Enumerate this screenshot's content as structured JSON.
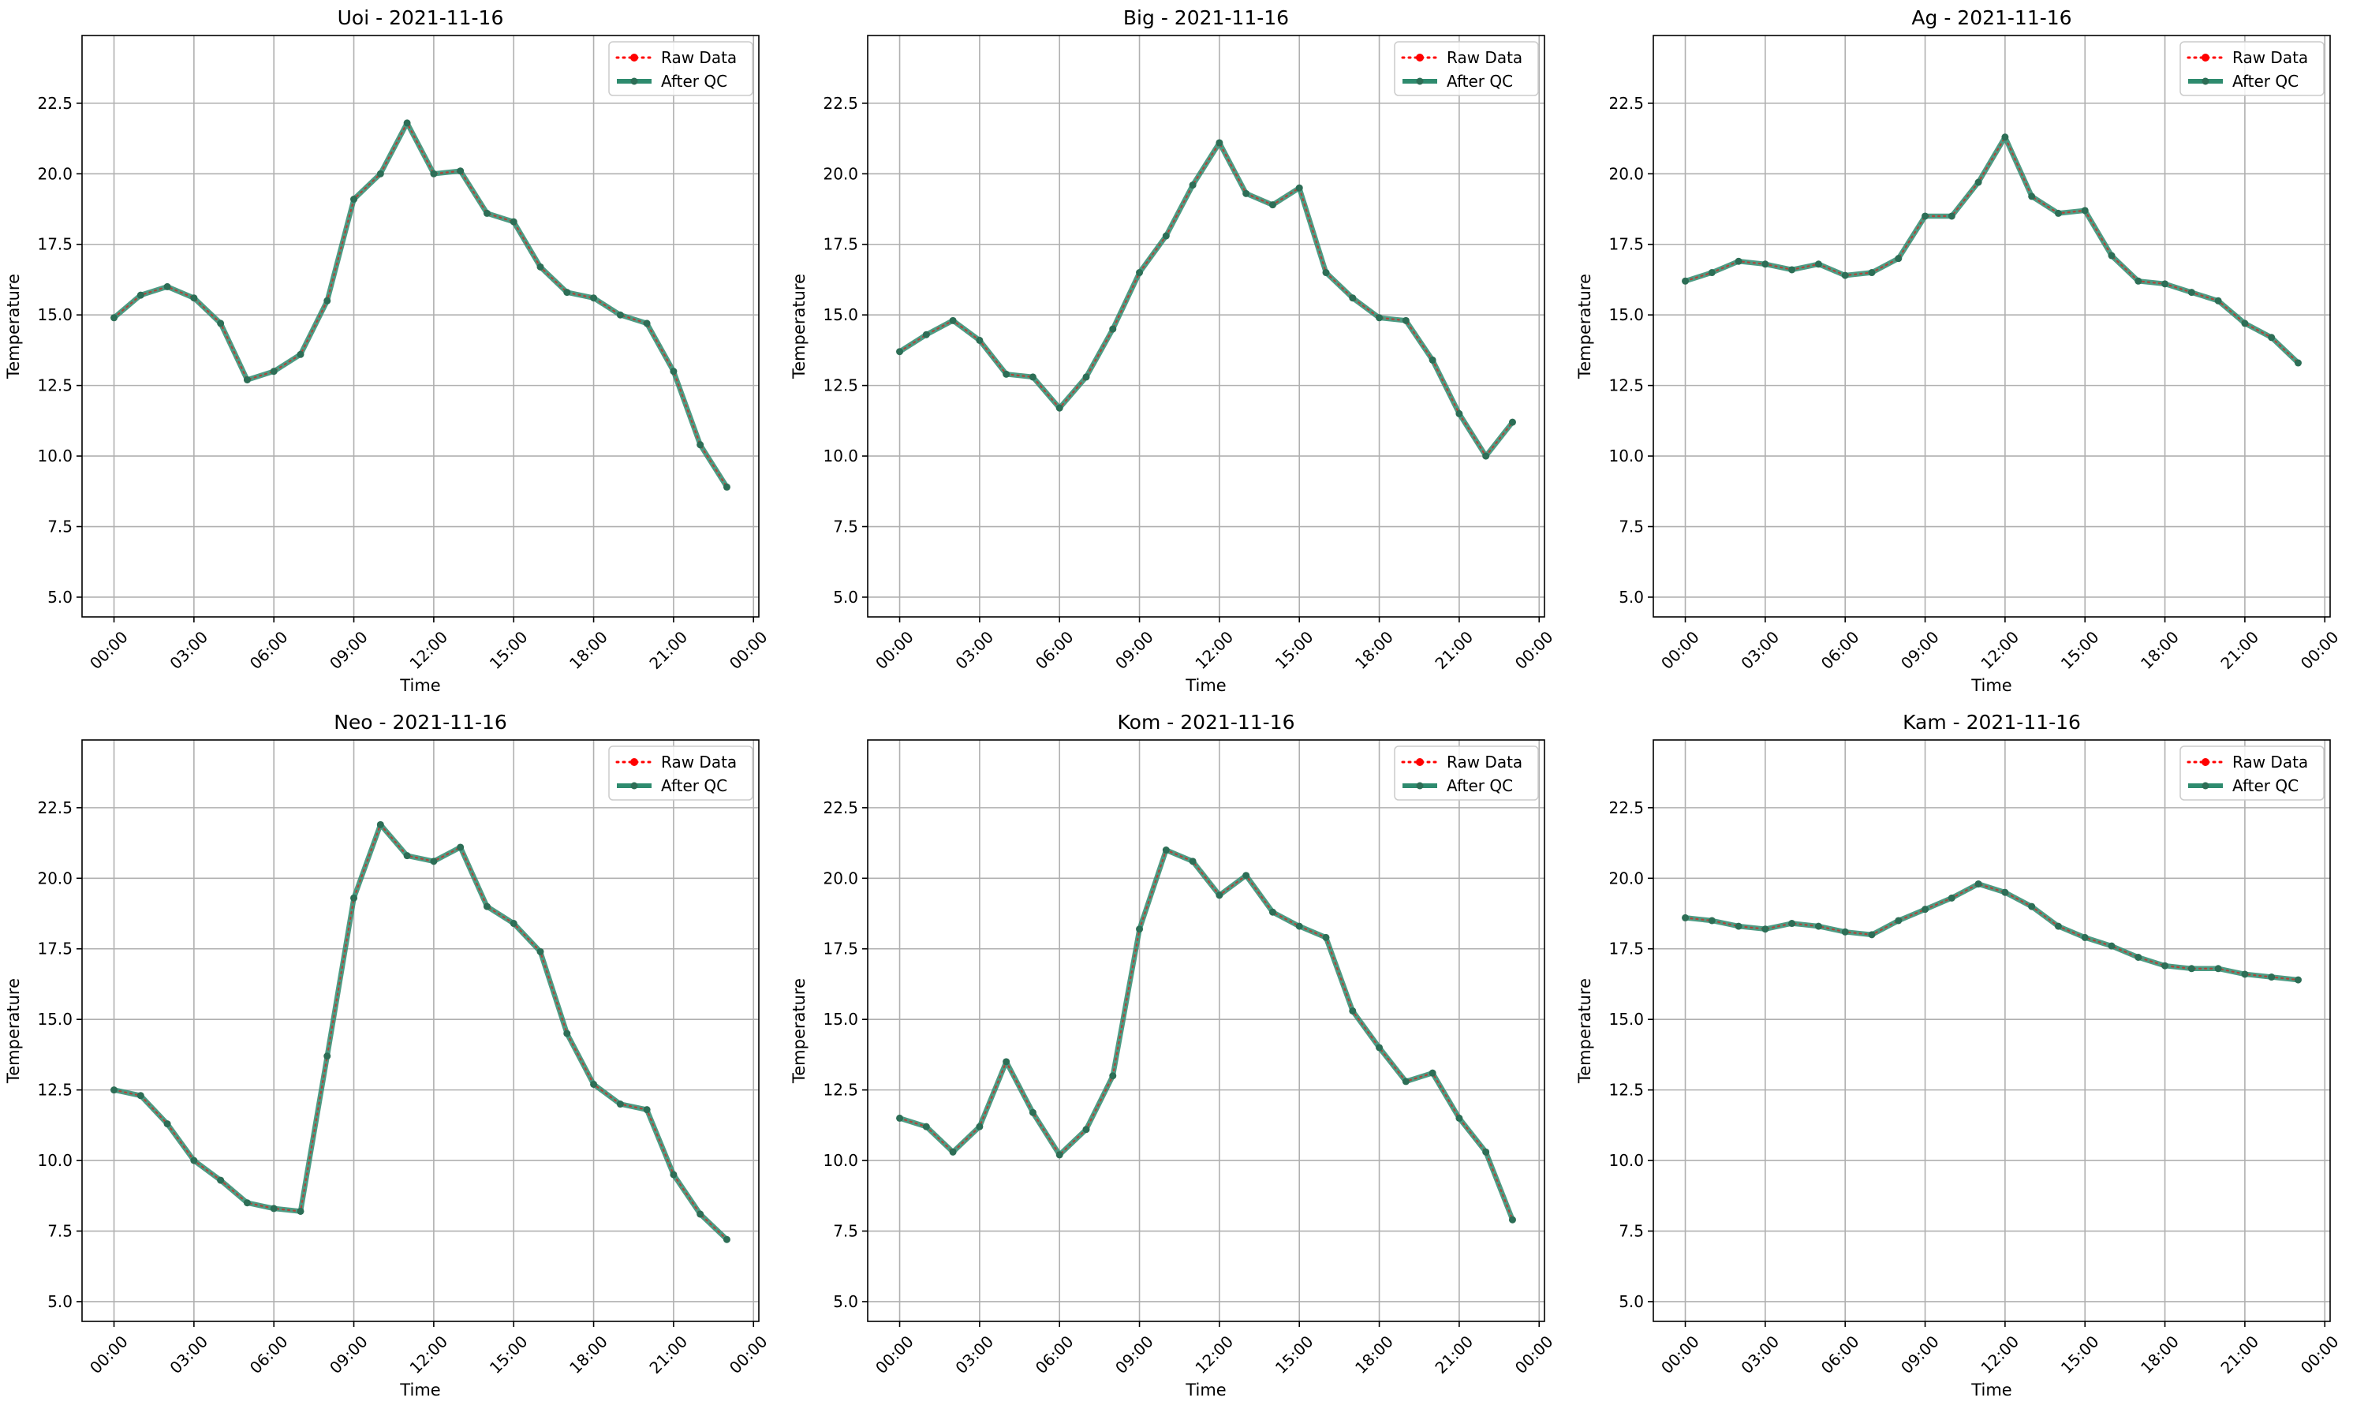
{
  "figure": {
    "legend_placement": "upper right",
    "grid": true,
    "colors": {
      "raw": "#ff0000",
      "qc": "#2e8b6e",
      "grid": "#b0b0b0",
      "axis": "#000000"
    }
  },
  "chart_data": [
    {
      "type": "line",
      "title": "Uoi - 2021-11-16",
      "xlabel": "Time",
      "ylabel": "Temperature",
      "x_tick_labels": [
        "00:00",
        "03:00",
        "06:00",
        "09:00",
        "12:00",
        "15:00",
        "18:00",
        "21:00",
        "00:00"
      ],
      "y_ticks": [
        5.0,
        7.5,
        10.0,
        12.5,
        15.0,
        17.5,
        20.0,
        22.5
      ],
      "y_tick_labels": [
        "5.0",
        "7.5",
        "10.0",
        "12.5",
        "15.0",
        "17.5",
        "20.0",
        "22.5"
      ],
      "xlim": [
        -1.2,
        24.2
      ],
      "ylim": [
        4.3,
        24.9
      ],
      "series": [
        {
          "name": "Raw Data",
          "style": "dotted",
          "values": [
            14.9,
            15.7,
            16.0,
            15.6,
            14.7,
            12.7,
            13.0,
            13.6,
            15.5,
            19.1,
            20.0,
            21.8,
            20.0,
            20.1,
            18.6,
            18.3,
            16.7,
            15.8,
            15.6,
            15.0,
            14.7,
            13.0,
            10.4,
            8.9
          ]
        },
        {
          "name": "After QC",
          "style": "solid",
          "values": [
            14.9,
            15.7,
            16.0,
            15.6,
            14.7,
            12.7,
            13.0,
            13.6,
            15.5,
            19.1,
            20.0,
            21.8,
            20.0,
            20.1,
            18.6,
            18.3,
            16.7,
            15.8,
            15.6,
            15.0,
            14.7,
            13.0,
            10.4,
            8.9
          ]
        }
      ]
    },
    {
      "type": "line",
      "title": "Big - 2021-11-16",
      "xlabel": "Time",
      "ylabel": "Temperature",
      "x_tick_labels": [
        "00:00",
        "03:00",
        "06:00",
        "09:00",
        "12:00",
        "15:00",
        "18:00",
        "21:00",
        "00:00"
      ],
      "y_ticks": [
        5.0,
        7.5,
        10.0,
        12.5,
        15.0,
        17.5,
        20.0,
        22.5
      ],
      "y_tick_labels": [
        "5.0",
        "7.5",
        "10.0",
        "12.5",
        "15.0",
        "17.5",
        "20.0",
        "22.5"
      ],
      "xlim": [
        -1.2,
        24.2
      ],
      "ylim": [
        4.3,
        24.9
      ],
      "series": [
        {
          "name": "Raw Data",
          "style": "dotted",
          "values": [
            13.7,
            14.3,
            14.8,
            14.1,
            12.9,
            12.8,
            11.7,
            12.8,
            14.5,
            16.5,
            17.8,
            19.6,
            21.1,
            19.3,
            18.9,
            19.5,
            16.5,
            15.6,
            14.9,
            14.8,
            13.4,
            11.5,
            10.0,
            11.2
          ]
        },
        {
          "name": "After QC",
          "style": "solid",
          "values": [
            13.7,
            14.3,
            14.8,
            14.1,
            12.9,
            12.8,
            11.7,
            12.8,
            14.5,
            16.5,
            17.8,
            19.6,
            21.1,
            19.3,
            18.9,
            19.5,
            16.5,
            15.6,
            14.9,
            14.8,
            13.4,
            11.5,
            10.0,
            11.2
          ]
        }
      ]
    },
    {
      "type": "line",
      "title": "Ag - 2021-11-16",
      "xlabel": "Time",
      "ylabel": "Temperature",
      "x_tick_labels": [
        "00:00",
        "03:00",
        "06:00",
        "09:00",
        "12:00",
        "15:00",
        "18:00",
        "21:00",
        "00:00"
      ],
      "y_ticks": [
        5.0,
        7.5,
        10.0,
        12.5,
        15.0,
        17.5,
        20.0,
        22.5
      ],
      "y_tick_labels": [
        "5.0",
        "7.5",
        "10.0",
        "12.5",
        "15.0",
        "17.5",
        "20.0",
        "22.5"
      ],
      "xlim": [
        -1.2,
        24.2
      ],
      "ylim": [
        4.3,
        24.9
      ],
      "series": [
        {
          "name": "Raw Data",
          "style": "dotted",
          "values": [
            16.2,
            16.5,
            16.9,
            16.8,
            16.6,
            16.8,
            16.4,
            16.5,
            17.0,
            18.5,
            18.5,
            19.7,
            21.3,
            19.2,
            18.6,
            18.7,
            17.1,
            16.2,
            16.1,
            15.8,
            15.5,
            14.7,
            14.2,
            13.3
          ]
        },
        {
          "name": "After QC",
          "style": "solid",
          "values": [
            16.2,
            16.5,
            16.9,
            16.8,
            16.6,
            16.8,
            16.4,
            16.5,
            17.0,
            18.5,
            18.5,
            19.7,
            21.3,
            19.2,
            18.6,
            18.7,
            17.1,
            16.2,
            16.1,
            15.8,
            15.5,
            14.7,
            14.2,
            13.3
          ]
        }
      ]
    },
    {
      "type": "line",
      "title": "Neo - 2021-11-16",
      "xlabel": "Time",
      "ylabel": "Temperature",
      "x_tick_labels": [
        "00:00",
        "03:00",
        "06:00",
        "09:00",
        "12:00",
        "15:00",
        "18:00",
        "21:00",
        "00:00"
      ],
      "y_ticks": [
        5.0,
        7.5,
        10.0,
        12.5,
        15.0,
        17.5,
        20.0,
        22.5
      ],
      "y_tick_labels": [
        "5.0",
        "7.5",
        "10.0",
        "12.5",
        "15.0",
        "17.5",
        "20.0",
        "22.5"
      ],
      "xlim": [
        -1.2,
        24.2
      ],
      "ylim": [
        4.3,
        24.9
      ],
      "series": [
        {
          "name": "Raw Data",
          "style": "dotted",
          "values": [
            12.5,
            12.3,
            11.3,
            10.0,
            9.3,
            8.5,
            8.3,
            8.2,
            13.7,
            19.3,
            21.9,
            20.8,
            20.6,
            21.1,
            19.0,
            18.4,
            17.4,
            14.5,
            12.7,
            12.0,
            11.8,
            9.5,
            8.1,
            7.2
          ]
        },
        {
          "name": "After QC",
          "style": "solid",
          "values": [
            12.5,
            12.3,
            11.3,
            10.0,
            9.3,
            8.5,
            8.3,
            8.2,
            13.7,
            19.3,
            21.9,
            20.8,
            20.6,
            21.1,
            19.0,
            18.4,
            17.4,
            14.5,
            12.7,
            12.0,
            11.8,
            9.5,
            8.1,
            7.2
          ]
        }
      ]
    },
    {
      "type": "line",
      "title": "Kom - 2021-11-16",
      "xlabel": "Time",
      "ylabel": "Temperature",
      "x_tick_labels": [
        "00:00",
        "03:00",
        "06:00",
        "09:00",
        "12:00",
        "15:00",
        "18:00",
        "21:00",
        "00:00"
      ],
      "y_ticks": [
        5.0,
        7.5,
        10.0,
        12.5,
        15.0,
        17.5,
        20.0,
        22.5
      ],
      "y_tick_labels": [
        "5.0",
        "7.5",
        "10.0",
        "12.5",
        "15.0",
        "17.5",
        "20.0",
        "22.5"
      ],
      "xlim": [
        -1.2,
        24.2
      ],
      "ylim": [
        4.3,
        24.9
      ],
      "series": [
        {
          "name": "Raw Data",
          "style": "dotted",
          "values": [
            11.5,
            11.2,
            10.3,
            11.2,
            13.5,
            11.7,
            10.2,
            11.1,
            13.0,
            18.2,
            21.0,
            20.6,
            19.4,
            20.1,
            18.8,
            18.3,
            17.9,
            15.3,
            14.0,
            12.8,
            13.1,
            11.5,
            10.3,
            7.9
          ]
        },
        {
          "name": "After QC",
          "style": "solid",
          "values": [
            11.5,
            11.2,
            10.3,
            11.2,
            13.5,
            11.7,
            10.2,
            11.1,
            13.0,
            18.2,
            21.0,
            20.6,
            19.4,
            20.1,
            18.8,
            18.3,
            17.9,
            15.3,
            14.0,
            12.8,
            13.1,
            11.5,
            10.3,
            7.9
          ]
        }
      ]
    },
    {
      "type": "line",
      "title": "Kam - 2021-11-16",
      "xlabel": "Time",
      "ylabel": "Temperature",
      "x_tick_labels": [
        "00:00",
        "03:00",
        "06:00",
        "09:00",
        "12:00",
        "15:00",
        "18:00",
        "21:00",
        "00:00"
      ],
      "y_ticks": [
        5.0,
        7.5,
        10.0,
        12.5,
        15.0,
        17.5,
        20.0,
        22.5
      ],
      "y_tick_labels": [
        "5.0",
        "7.5",
        "10.0",
        "12.5",
        "15.0",
        "17.5",
        "20.0",
        "22.5"
      ],
      "xlim": [
        -1.2,
        24.2
      ],
      "ylim": [
        4.3,
        24.9
      ],
      "series": [
        {
          "name": "Raw Data",
          "style": "dotted",
          "values": [
            18.6,
            18.5,
            18.3,
            18.2,
            18.4,
            18.3,
            18.1,
            18.0,
            18.5,
            18.9,
            19.3,
            19.8,
            19.5,
            19.0,
            18.3,
            17.9,
            17.6,
            17.2,
            16.9,
            16.8,
            16.8,
            16.6,
            16.5,
            16.4
          ]
        },
        {
          "name": "After QC",
          "style": "solid",
          "values": [
            18.6,
            18.5,
            18.3,
            18.2,
            18.4,
            18.3,
            18.1,
            18.0,
            18.5,
            18.9,
            19.3,
            19.8,
            19.5,
            19.0,
            18.3,
            17.9,
            17.6,
            17.2,
            16.9,
            16.8,
            16.8,
            16.6,
            16.5,
            16.4
          ]
        }
      ]
    }
  ]
}
